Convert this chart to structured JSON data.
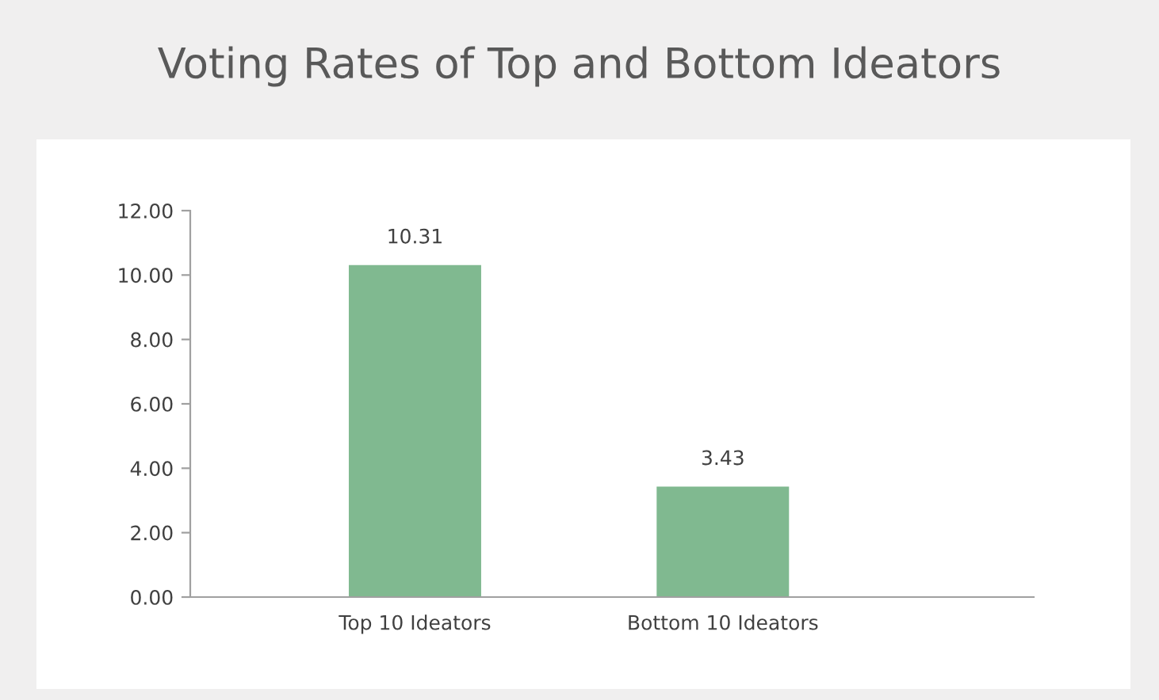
{
  "chart_data": {
    "type": "bar",
    "title": "Voting Rates of Top and Bottom Ideators",
    "categories": [
      "Top 10 Ideators",
      "Bottom 10 Ideators"
    ],
    "values": [
      10.31,
      3.43
    ],
    "color": "#80b990",
    "ylim": [
      0,
      12
    ],
    "yticks": [
      {
        "value": 0,
        "label": "0.00"
      },
      {
        "value": 2,
        "label": "2.00"
      },
      {
        "value": 4,
        "label": "4.00"
      },
      {
        "value": 6,
        "label": "6.00"
      },
      {
        "value": 8,
        "label": "8.00"
      },
      {
        "value": 10,
        "label": "10.00"
      },
      {
        "value": 12,
        "label": "12.00"
      }
    ],
    "data_labels": true,
    "grid": false,
    "legend": false
  }
}
